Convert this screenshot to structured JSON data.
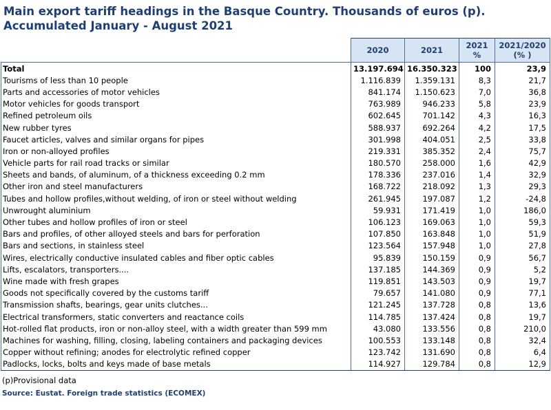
{
  "title": {
    "line1": "Main export tariff headings in the Basque Country. Thousands of euros (p).",
    "line2": "Accumulated January - August 2021"
  },
  "table": {
    "headers": {
      "y2020": "2020",
      "y2021": "2021",
      "pct_line1": "2021",
      "pct_line2": "%",
      "ratio_line1": "2021/2020",
      "ratio_line2": "(% )"
    },
    "rows": [
      {
        "label": "Total",
        "v2020": "13.197.694",
        "v2021": "16.350.323",
        "pct": "100",
        "ratio": "23,9"
      },
      {
        "label": "Tourisms of less than 10 people",
        "v2020": "1.116.839",
        "v2021": "1.359.131",
        "pct": "8,3",
        "ratio": "21,7"
      },
      {
        "label": "Parts and accessories of motor vehicles",
        "v2020": "841.174",
        "v2021": "1.150.623",
        "pct": "7,0",
        "ratio": "36,8"
      },
      {
        "label": "Motor vehicles for goods transport",
        "v2020": "763.989",
        "v2021": "946.233",
        "pct": "5,8",
        "ratio": "23,9"
      },
      {
        "label": "Refined petroleum oils",
        "v2020": "602.645",
        "v2021": "701.142",
        "pct": "4,3",
        "ratio": "16,3"
      },
      {
        "label": "New rubber tyres",
        "v2020": "588.937",
        "v2021": "692.264",
        "pct": "4,2",
        "ratio": "17,5"
      },
      {
        "label": "Faucet articles, valves and similar organs for pipes",
        "v2020": "301.998",
        "v2021": "404.051",
        "pct": "2,5",
        "ratio": "33,8"
      },
      {
        "label": "Iron or non-alloyed profiles",
        "v2020": "219.331",
        "v2021": "385.352",
        "pct": "2,4",
        "ratio": "75,7"
      },
      {
        "label": "Vehicle parts for rail road tracks or similar",
        "v2020": "180.570",
        "v2021": "258.000",
        "pct": "1,6",
        "ratio": "42,9"
      },
      {
        "label": "Sheets and bands, of aluminum, of a thickness exceeding 0.2 mm",
        "v2020": "178.336",
        "v2021": "237.016",
        "pct": "1,4",
        "ratio": "32,9"
      },
      {
        "label": "Other iron and steel manufacturers",
        "v2020": "168.722",
        "v2021": "218.092",
        "pct": "1,3",
        "ratio": "29,3"
      },
      {
        "label": "Tubes and hollow profiles,without welding, of iron or steel without welding",
        "v2020": "261.945",
        "v2021": "197.087",
        "pct": "1,2",
        "ratio": "-24,8"
      },
      {
        "label": "Unwrought aluminium",
        "v2020": "59.931",
        "v2021": "171.419",
        "pct": "1,0",
        "ratio": "186,0"
      },
      {
        "label": "Other tubes and hollow profiles of iron or steel",
        "v2020": "106.123",
        "v2021": "169.063",
        "pct": "1,0",
        "ratio": "59,3"
      },
      {
        "label": "Bars and profiles, of other alloyed steels and bars for perforation",
        "v2020": "107.850",
        "v2021": "163.848",
        "pct": "1,0",
        "ratio": "51,9"
      },
      {
        "label": "Bars and sections, in stainless steel",
        "v2020": "123.564",
        "v2021": "157.948",
        "pct": "1,0",
        "ratio": "27,8"
      },
      {
        "label": "Wires, electrically conductive insulated cables and fiber optic cables",
        "v2020": "95.839",
        "v2021": "150.159",
        "pct": "0,9",
        "ratio": "56,7"
      },
      {
        "label": "Lifts, escalators, transporters....",
        "v2020": "137.185",
        "v2021": "144.369",
        "pct": "0,9",
        "ratio": "5,2"
      },
      {
        "label": "Wine made with fresh grapes",
        "v2020": "119.851",
        "v2021": "143.503",
        "pct": "0,9",
        "ratio": "19,7"
      },
      {
        "label": "Goods not specifically covered by the customs tariff",
        "v2020": "79.657",
        "v2021": "141.080",
        "pct": "0,9",
        "ratio": "77,1"
      },
      {
        "label": "Transmission shafts, bearings, gear units clutches...",
        "v2020": "121.245",
        "v2021": "137.728",
        "pct": "0,8",
        "ratio": "13,6"
      },
      {
        "label": "Electrical transformers, static converters and reactance coils",
        "v2020": "114.785",
        "v2021": "137.424",
        "pct": "0,8",
        "ratio": "19,7"
      },
      {
        "label": "Hot-rolled flat products, iron or non-alloy steel, with a width greater than 599 mm",
        "v2020": "43.080",
        "v2021": "133.556",
        "pct": "0,8",
        "ratio": "210,0"
      },
      {
        "label": "Machines for washing, filling, closing, labeling containers and packaging devices",
        "v2020": "100.553",
        "v2021": "133.148",
        "pct": "0,8",
        "ratio": "32,4"
      },
      {
        "label": "Copper without refining; anodes for electrolytic refined copper",
        "v2020": "123.742",
        "v2021": "131.690",
        "pct": "0,8",
        "ratio": "6,4"
      },
      {
        "label": "Padlocks, locks, bolts and keys made of base metals",
        "v2020": "114.927",
        "v2021": "129.784",
        "pct": "0,8",
        "ratio": "12,9"
      }
    ]
  },
  "footnote": "(p)Provisional data",
  "source": "Source: Eustat. Foreign trade statistics (ECOMEX)"
}
